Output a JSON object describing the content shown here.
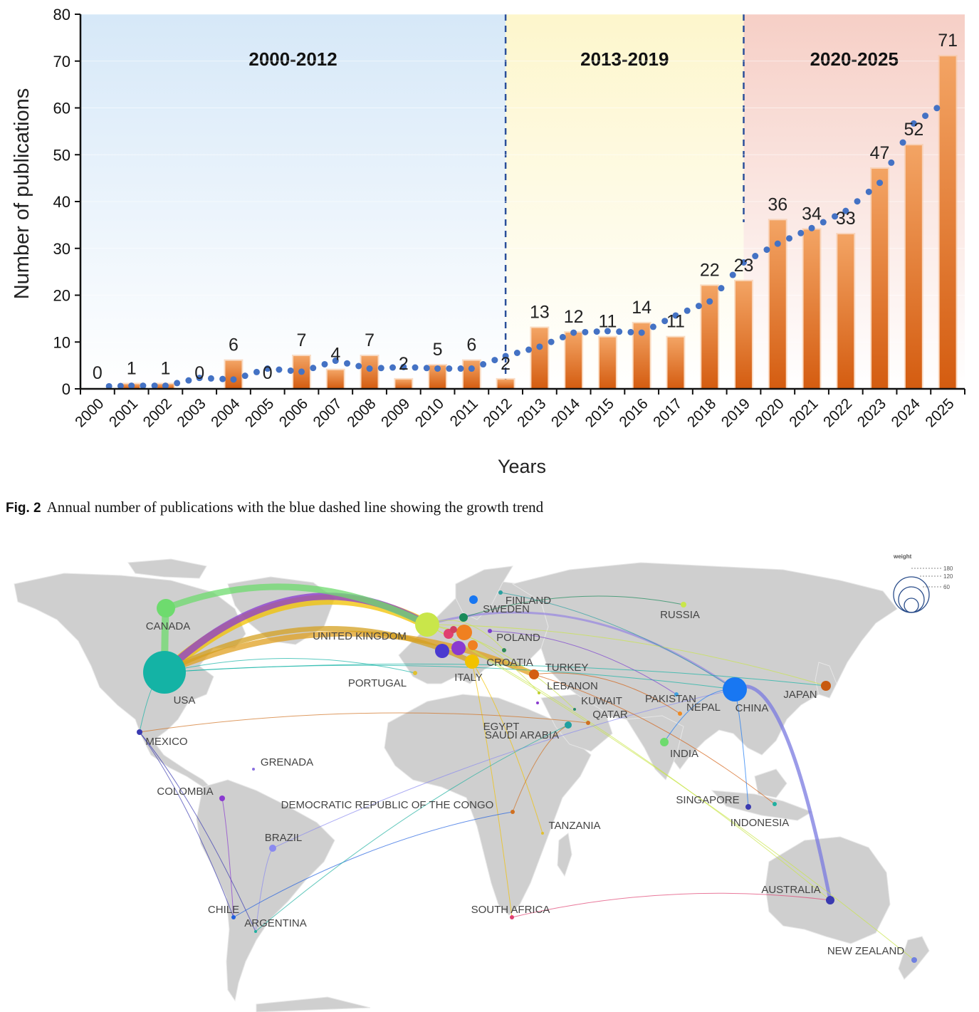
{
  "chart_data": {
    "type": "bar",
    "ylabel": "Number of publications",
    "xlabel": "Years",
    "ylim": [
      0,
      80
    ],
    "yticks": [
      0,
      10,
      20,
      30,
      40,
      50,
      60,
      70,
      80
    ],
    "categories": [
      "2000",
      "2001",
      "2002",
      "2003",
      "2004",
      "2005",
      "2006",
      "2007",
      "2008",
      "2009",
      "2010",
      "2011",
      "2012",
      "2013",
      "2014",
      "2015",
      "2016",
      "2017",
      "2018",
      "2019",
      "2020",
      "2021",
      "2022",
      "2023",
      "2024",
      "2025"
    ],
    "values": [
      0,
      1,
      1,
      0,
      6,
      0,
      7,
      4,
      7,
      2,
      5,
      6,
      2,
      13,
      12,
      11,
      14,
      11,
      22,
      23,
      36,
      34,
      33,
      47,
      52,
      71
    ],
    "trend_line": "blue dotted",
    "periods": [
      {
        "label": "2000-2012",
        "color": "#d6e8f8"
      },
      {
        "label": "2013-2019",
        "color": "#fdf6cc"
      },
      {
        "label": "2020-2025",
        "color": "#f6cfc6"
      }
    ],
    "bar_color": "#e67a2e",
    "trend_color": "#4472c4"
  },
  "caption": {
    "label": "Fig. 2",
    "text": "Annual number of publications with the blue dashed line showing the growth trend"
  },
  "map": {
    "legend_title": "weight",
    "legend_values": [
      "180",
      "120",
      "60"
    ],
    "countries": [
      {
        "name": "USA",
        "color": "#14b3a5"
      },
      {
        "name": "CANADA",
        "color": "#6edb6e"
      },
      {
        "name": "UNITED KINGDOM",
        "color": "#c9e64a"
      },
      {
        "name": "FINLAND",
        "color": "#2aa0a0"
      },
      {
        "name": "SWEDEN",
        "color": "#1a8a5a"
      },
      {
        "name": "POLAND",
        "color": "#7a3fd0"
      },
      {
        "name": "CROATIA",
        "color": "#2e8b57"
      },
      {
        "name": "TURKEY",
        "color": "#d35f12"
      },
      {
        "name": "ITALY",
        "color": "#f2c200"
      },
      {
        "name": "PORTUGAL",
        "color": "#e0c030"
      },
      {
        "name": "LEBANON",
        "color": "#c0d030"
      },
      {
        "name": "KUWAIT",
        "color": "#2a8a6a"
      },
      {
        "name": "QATAR",
        "color": "#d07020"
      },
      {
        "name": "EGYPT",
        "color": "#8a3ad0"
      },
      {
        "name": "SAUDI ARABIA",
        "color": "#20a0a0"
      },
      {
        "name": "PAKISTAN",
        "color": "#40a0e0"
      },
      {
        "name": "NEPAL",
        "color": "#f08a20"
      },
      {
        "name": "CHINA",
        "color": "#1877f2"
      },
      {
        "name": "JAPAN",
        "color": "#c85a10"
      },
      {
        "name": "RUSSIA",
        "color": "#c9e64a"
      },
      {
        "name": "INDIA",
        "color": "#6edb6e"
      },
      {
        "name": "SINGAPORE",
        "color": "#20b0a0"
      },
      {
        "name": "INDONESIA",
        "color": "#3a3ab0"
      },
      {
        "name": "AUSTRALIA",
        "color": "#3a3ab0"
      },
      {
        "name": "NEW ZEALAND",
        "color": "#7080e0"
      },
      {
        "name": "MEXICO",
        "color": "#3a3ab0"
      },
      {
        "name": "GRENADA",
        "color": "#8a70e0"
      },
      {
        "name": "COLOMBIA",
        "color": "#8a3ad0"
      },
      {
        "name": "BRAZIL",
        "color": "#8a8af0"
      },
      {
        "name": "CHILE",
        "color": "#2060e0"
      },
      {
        "name": "ARGENTINA",
        "color": "#20b0a0"
      },
      {
        "name": "DEMOCRATIC REPUBLIC OF THE CONGO",
        "color": "#d07020"
      },
      {
        "name": "TANZANIA",
        "color": "#e0c030"
      },
      {
        "name": "SOUTH AFRICA",
        "color": "#e04070"
      }
    ]
  }
}
